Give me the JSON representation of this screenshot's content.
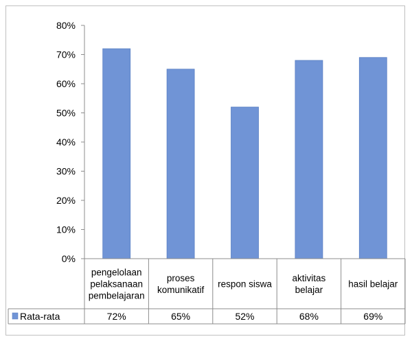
{
  "chart_data": {
    "type": "bar",
    "categories": [
      [
        "pengelolaan",
        "pelaksanaan",
        "pembelajaran"
      ],
      [
        "proses",
        "komunikatif"
      ],
      [
        "respon siswa"
      ],
      [
        "aktivitas",
        "belajar"
      ],
      [
        "hasil belajar"
      ]
    ],
    "series": [
      {
        "name": "Rata-rata",
        "values": [
          72,
          65,
          52,
          68,
          69
        ],
        "labels": [
          "72%",
          "65%",
          "52%",
          "68%",
          "69%"
        ],
        "color": "#7094d6"
      }
    ],
    "yticks": [
      "0%",
      "10%",
      "20%",
      "30%",
      "40%",
      "50%",
      "60%",
      "70%",
      "80%"
    ],
    "ylim": [
      0,
      80
    ],
    "grid": false,
    "legend": "data-table-left"
  }
}
